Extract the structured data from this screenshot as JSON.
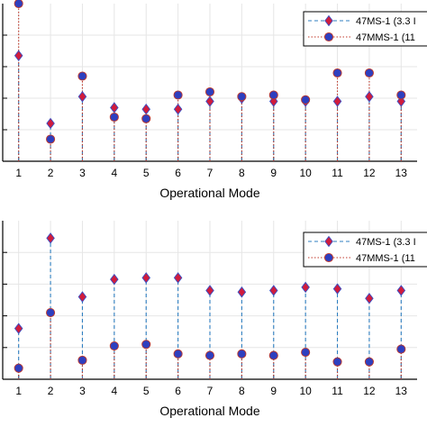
{
  "chart_data": [
    {
      "type": "scatter",
      "style": "stem",
      "title": "",
      "xlabel": "Operational Mode",
      "ylabel": "",
      "x": [
        1,
        2,
        3,
        4,
        5,
        6,
        7,
        8,
        9,
        10,
        11,
        12,
        13
      ],
      "xticks": [
        "1",
        "2",
        "3",
        "4",
        "5",
        "6",
        "7",
        "8",
        "9",
        "10",
        "11",
        "12",
        "13"
      ],
      "xlim": [
        0.5,
        13.5
      ],
      "ylim": [
        0,
        100
      ],
      "grid": true,
      "legend_position": "top-right",
      "series": [
        {
          "name": "47MS-1 (3.3 I",
          "marker": "diamond",
          "line": "dashed",
          "color": "#2f7fc1",
          "fill": "#d01c3c",
          "values": [
            67,
            24,
            41,
            34,
            33,
            33,
            38,
            40,
            38,
            38,
            38,
            41,
            38
          ]
        },
        {
          "name": "47MMS-1 (11",
          "marker": "circle",
          "line": "dotted",
          "color": "#c0392b",
          "fill": "#2e3fbf",
          "values": [
            100,
            14,
            54,
            28,
            27,
            42,
            44,
            41,
            42,
            39,
            56,
            56,
            42
          ]
        }
      ]
    },
    {
      "type": "scatter",
      "style": "stem",
      "title": "",
      "xlabel": "Operational Mode",
      "ylabel": "",
      "x": [
        1,
        2,
        3,
        4,
        5,
        6,
        7,
        8,
        9,
        10,
        11,
        12,
        13
      ],
      "xticks": [
        "1",
        "2",
        "3",
        "4",
        "5",
        "6",
        "7",
        "8",
        "9",
        "10",
        "11",
        "12",
        "13"
      ],
      "xlim": [
        0.5,
        13.5
      ],
      "ylim": [
        0,
        100
      ],
      "grid": true,
      "legend_position": "top-right",
      "series": [
        {
          "name": "47MS-1 (3.3 I",
          "marker": "diamond",
          "line": "dashed",
          "color": "#2f7fc1",
          "fill": "#d01c3c",
          "values": [
            32,
            89,
            52,
            63,
            64,
            64,
            56,
            55,
            56,
            58,
            57,
            51,
            56
          ]
        },
        {
          "name": "47MMS-1 (11",
          "marker": "circle",
          "line": "dotted",
          "color": "#c0392b",
          "fill": "#2e3fbf",
          "values": [
            7,
            42,
            12,
            21,
            22,
            16,
            15,
            16,
            15,
            17,
            11,
            11,
            19
          ]
        }
      ]
    }
  ]
}
